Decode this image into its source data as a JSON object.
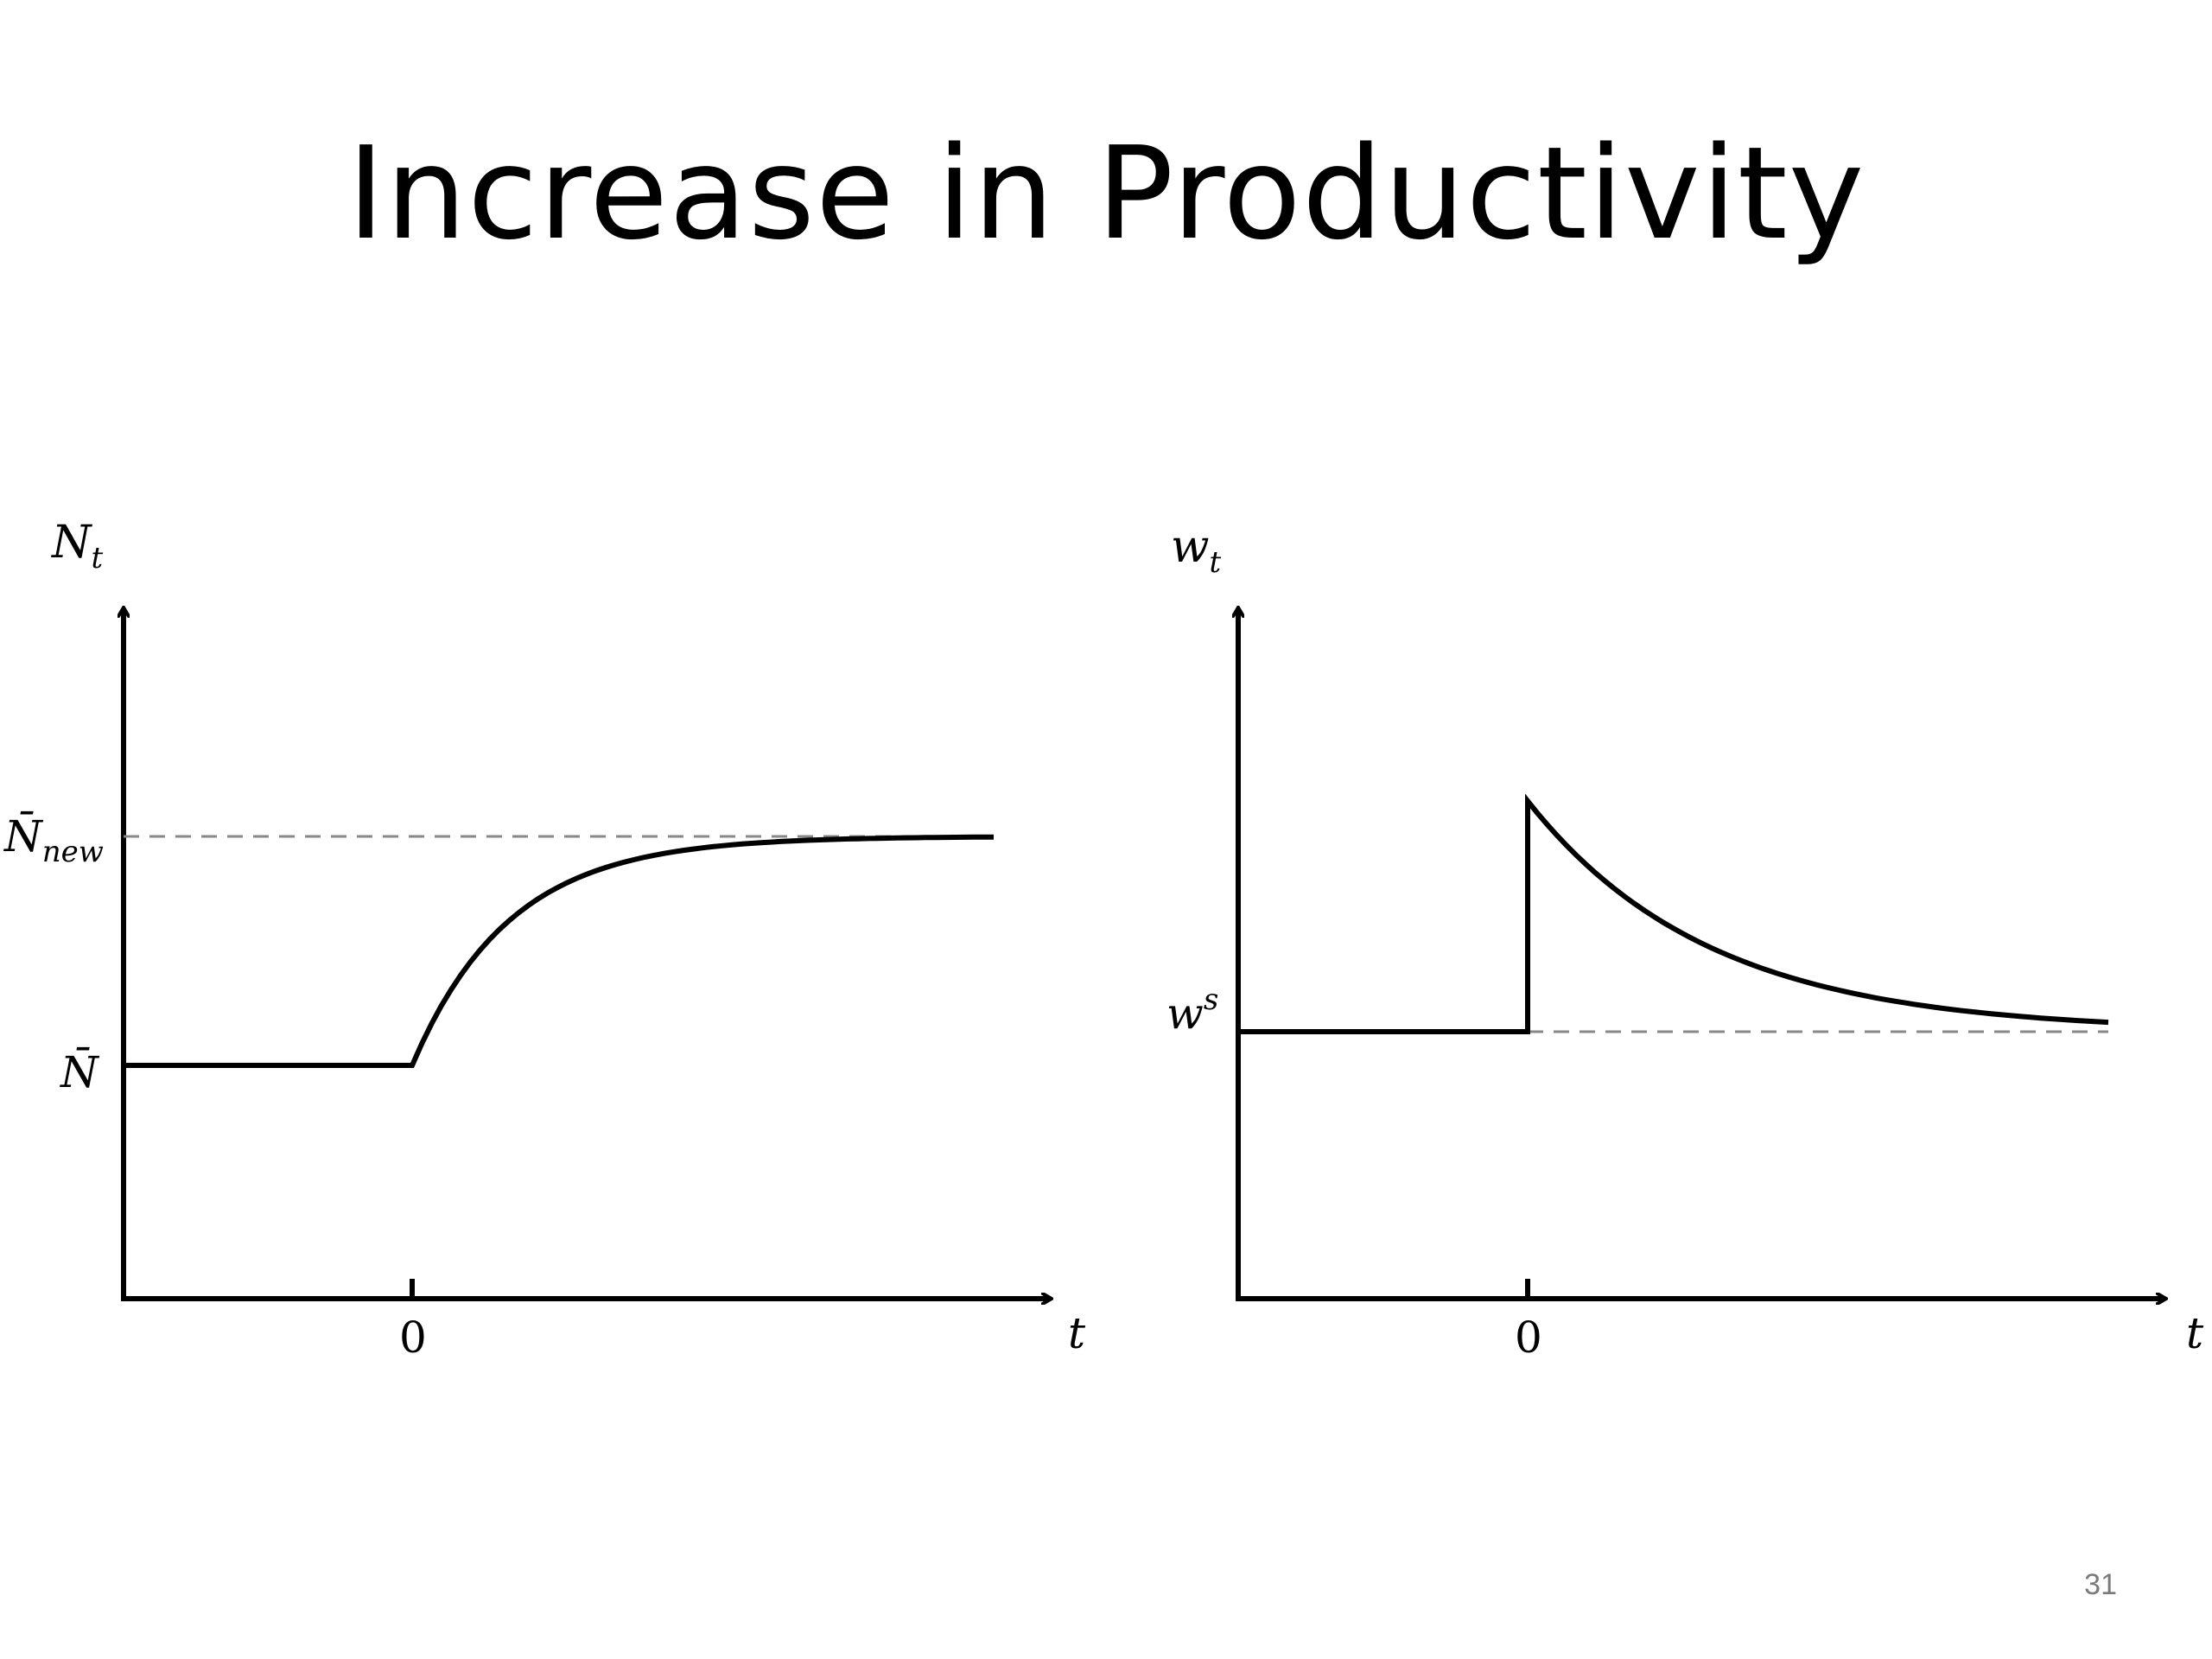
{
  "slide": {
    "title": "Increase in Productivity",
    "page_number": "31"
  },
  "colors": {
    "line": "#000000",
    "dashed": "#888888",
    "page_number": "#7a7a7a"
  },
  "chart_data": [
    {
      "type": "line",
      "ylabel": "N",
      "ylabel_sub": "t",
      "xlabel": "t",
      "x_ticks": [
        "0"
      ],
      "y_levels": [
        {
          "label": "N̄",
          "sub": "",
          "value": 0
        },
        {
          "label": "N̄",
          "sub": "new",
          "value": 1
        }
      ],
      "reference_lines": [
        {
          "value": 1,
          "style": "dashed"
        }
      ],
      "series": [
        {
          "x": [
            -1,
            0,
            0.5,
            1,
            1.5,
            2,
            2.5,
            3
          ],
          "y": [
            0,
            0,
            0.63,
            0.86,
            0.95,
            0.98,
            0.99,
            1.0
          ]
        }
      ]
    },
    {
      "type": "line",
      "ylabel": "w",
      "ylabel_sub": "t",
      "xlabel": "t",
      "x_ticks": [
        "0"
      ],
      "y_levels": [
        {
          "label": "w",
          "sup": "s",
          "value": 0
        }
      ],
      "reference_lines": [
        {
          "value": 0,
          "style": "dashed"
        }
      ],
      "series": [
        {
          "x": [
            -1,
            0,
            0,
            0.5,
            1,
            1.5,
            2
          ],
          "y": [
            0,
            0,
            1.0,
            0.45,
            0.2,
            0.09,
            0.04
          ]
        }
      ]
    }
  ]
}
